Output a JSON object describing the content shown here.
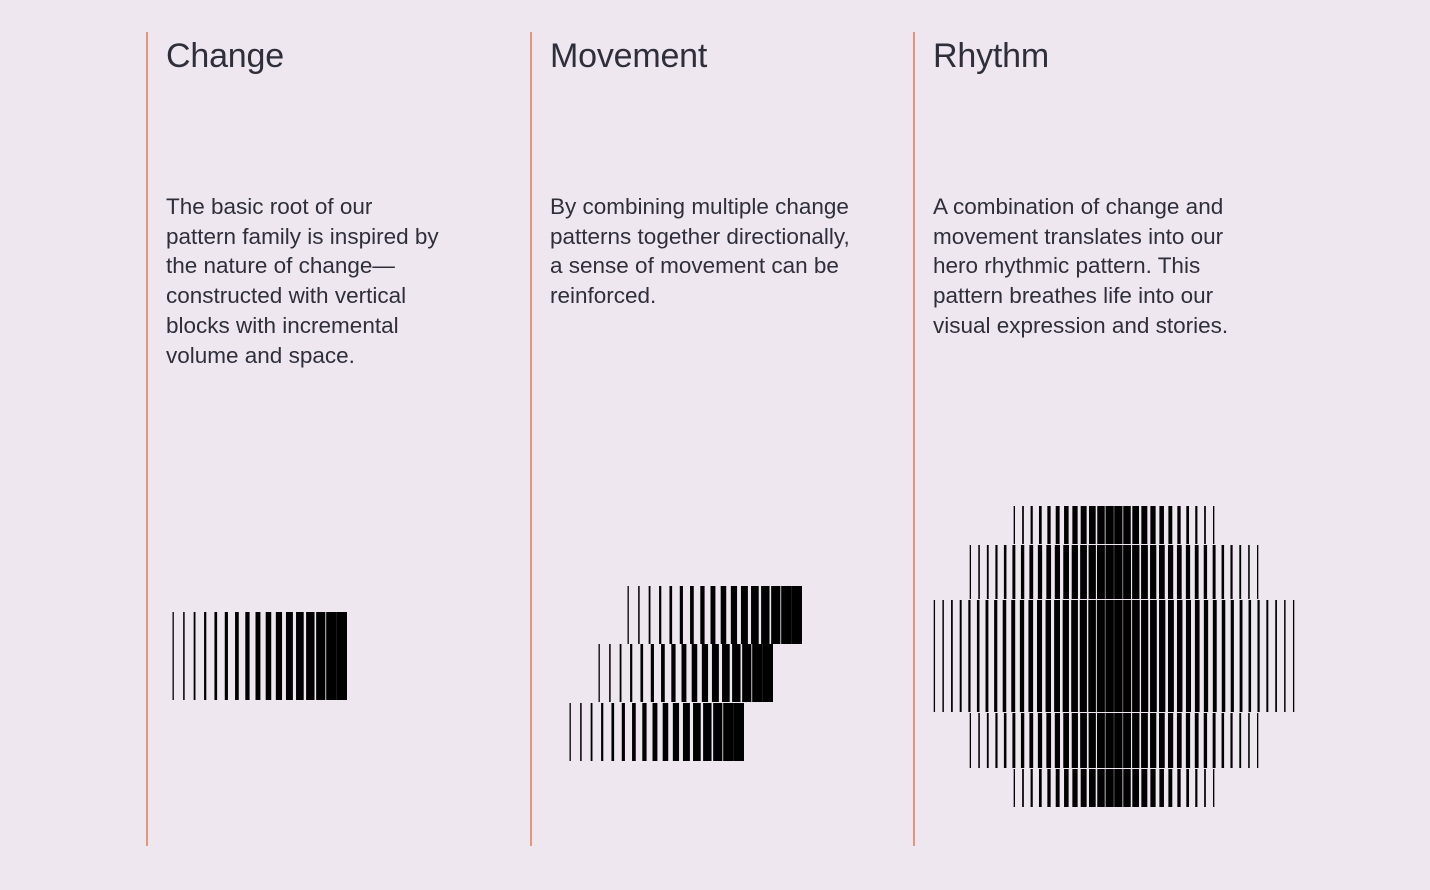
{
  "columns": [
    {
      "id": "change",
      "title": "Change",
      "body": "The basic root of our\npattern family is inspired by\nthe nature of change—\nconstructed with vertical\nblocks with incremental\nvolume and space."
    },
    {
      "id": "movement",
      "title": "Movement",
      "body": "By combining multiple change\npatterns together directionally,\na sense of movement can be\nreinforced."
    },
    {
      "id": "rhythm",
      "title": "Rhythm",
      "body": "A combination of change and\nmovement translates into our\nhero rhythmic pattern. This\npattern breathes life into our\nvisual expression and stories."
    }
  ],
  "colors": {
    "background": "#EFE7EF",
    "divider": "#E89479",
    "text": "#2E2F3B",
    "bars": "#000000"
  },
  "patterns": {
    "change": {
      "blocks": 1,
      "bars_per_block": 17
    },
    "movement": {
      "blocks": 3,
      "bars_per_block": 17,
      "direction": "ascending-right"
    },
    "rhythm": {
      "rows": 5,
      "style": "symmetric"
    }
  }
}
